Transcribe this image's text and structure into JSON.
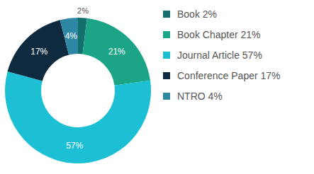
{
  "chart_data": {
    "type": "pie",
    "categories": [
      "Book 2%",
      "Book Chapter 21%",
      "Journal Article 57%",
      "Conference Paper 17%",
      "NTRO 4%"
    ],
    "values": [
      2,
      21,
      57,
      17,
      4
    ],
    "value_labels": [
      "2%",
      "21%",
      "57%",
      "17%",
      "4%"
    ],
    "colors": [
      "#136f6c",
      "#1ca487",
      "#1cbfd3",
      "#0d2a3e",
      "#2f88a3"
    ],
    "data_labels": true,
    "legend": "right"
  }
}
